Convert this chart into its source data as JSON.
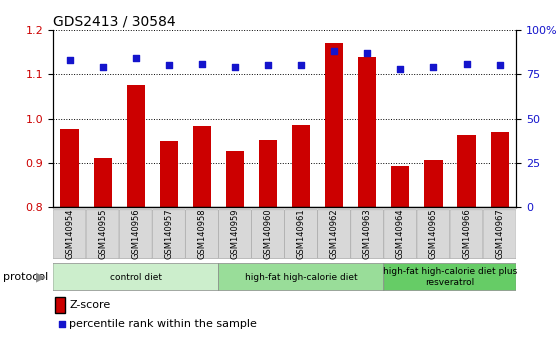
{
  "title": "GDS2413 / 30584",
  "samples": [
    "GSM140954",
    "GSM140955",
    "GSM140956",
    "GSM140957",
    "GSM140958",
    "GSM140959",
    "GSM140960",
    "GSM140961",
    "GSM140962",
    "GSM140963",
    "GSM140964",
    "GSM140965",
    "GSM140966",
    "GSM140967"
  ],
  "z_scores": [
    0.977,
    0.912,
    1.075,
    0.95,
    0.983,
    0.927,
    0.952,
    0.985,
    1.17,
    1.14,
    0.893,
    0.907,
    0.962,
    0.97
  ],
  "percentile_ranks": [
    83,
    79,
    84,
    80,
    81,
    79,
    80,
    80,
    88,
    87,
    78,
    79,
    81,
    80
  ],
  "bar_color": "#cc0000",
  "dot_color": "#1414cc",
  "ylim_left": [
    0.8,
    1.2
  ],
  "ylim_right": [
    0,
    100
  ],
  "yticks_left": [
    0.8,
    0.9,
    1.0,
    1.1,
    1.2
  ],
  "yticks_right": [
    0,
    25,
    50,
    75,
    100
  ],
  "protocols": [
    {
      "label": "control diet",
      "start": 0,
      "end": 4,
      "color": "#cceecc"
    },
    {
      "label": "high-fat high-calorie diet",
      "start": 5,
      "end": 9,
      "color": "#99dd99"
    },
    {
      "label": "high-fat high-calorie diet plus\nresveratrol",
      "start": 10,
      "end": 13,
      "color": "#66cc66"
    }
  ],
  "legend_zscore_label": "Z-score",
  "legend_percentile_label": "percentile rank within the sample",
  "protocol_label": "protocol",
  "background_color": "#ffffff",
  "title_fontsize": 10,
  "tick_fontsize": 8,
  "label_fontsize": 8
}
